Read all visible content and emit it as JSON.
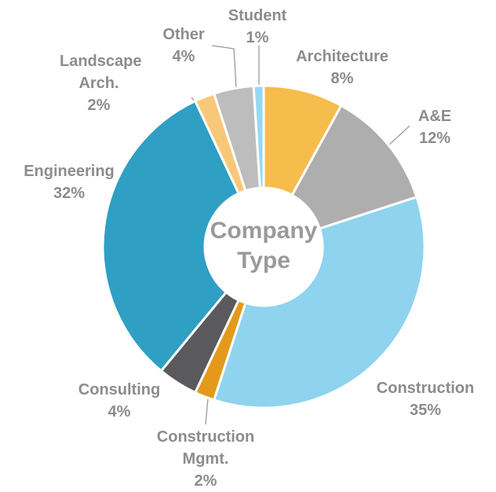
{
  "chart_data": {
    "type": "donut",
    "title": "Company Type",
    "categories": [
      "Architecture",
      "A&E",
      "Construction",
      "Construction Mgmt.",
      "Consulting",
      "Engineering",
      "Landscape Arch.",
      "Other",
      "Student"
    ],
    "values": [
      8,
      12,
      35,
      2,
      4,
      32,
      2,
      4,
      1
    ],
    "value_labels": [
      "8%",
      "12%",
      "35%",
      "2%",
      "4%",
      "32%",
      "2%",
      "4%",
      "1%"
    ],
    "colors": [
      "#f6bc4c",
      "#aeaeaf",
      "#8fd3ee",
      "#e39a1c",
      "#5a5a5c",
      "#2f9fc4",
      "#f8c87a",
      "#bdbdbe",
      "#95d9f1"
    ]
  }
}
